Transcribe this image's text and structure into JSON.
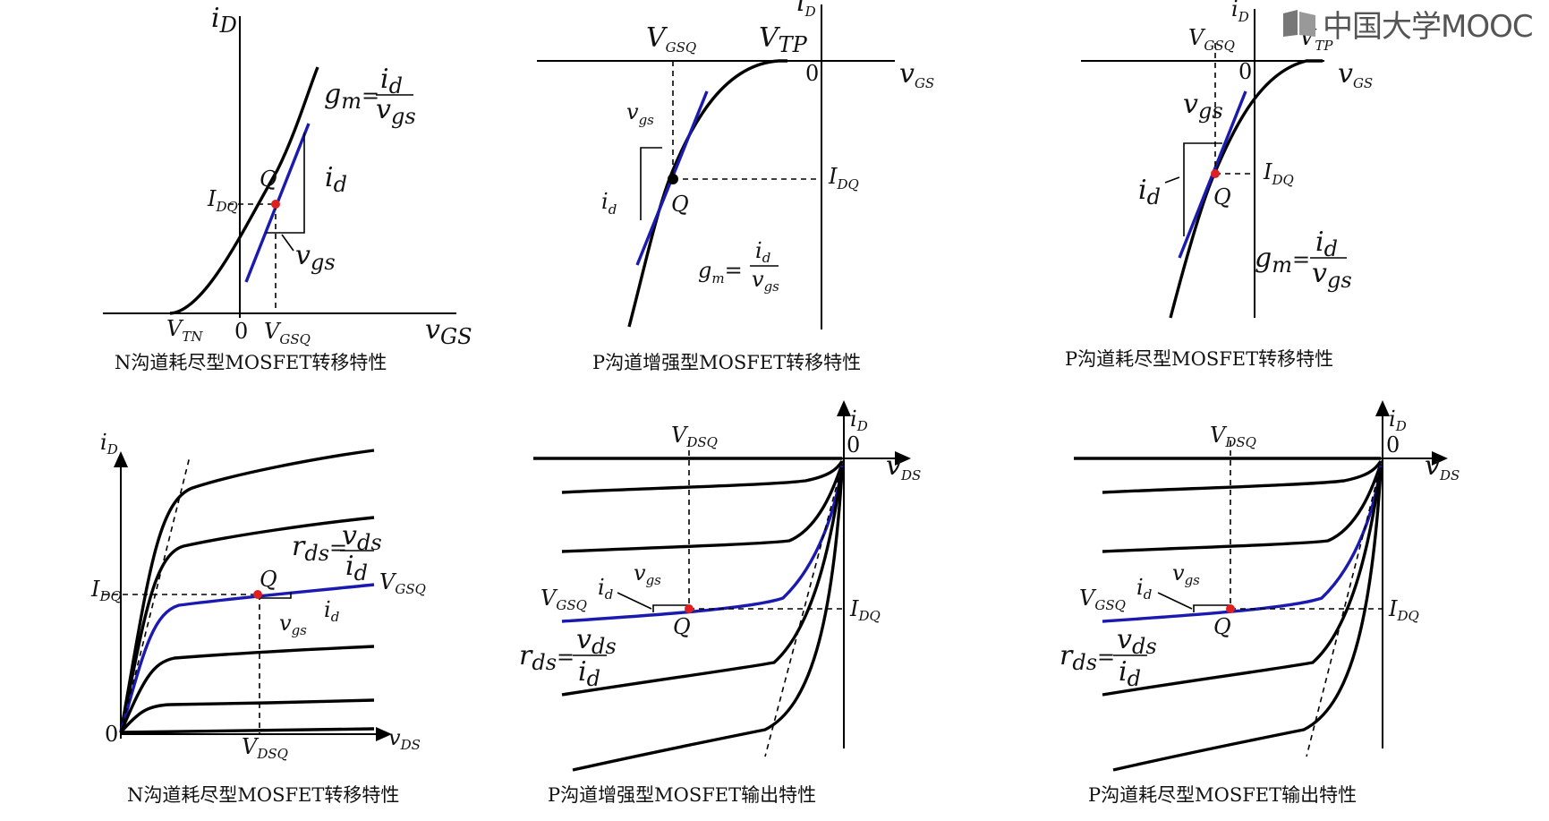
{
  "logo": {
    "text": "中国大学MOOC",
    "icon": "book-icon",
    "color": "#555555"
  },
  "colors": {
    "curve": "#000000",
    "tangent": "#1a1ab0",
    "q_point": "#e02020"
  },
  "panels": {
    "p1": {
      "caption": "N沟道耗尽型MOSFET转移特性",
      "gm_eq": "=",
      "vtn": "V",
      "vtn_sub": "TN",
      "zero": "0",
      "vgsq": "V",
      "vgsq_sub": "GSQ",
      "idq": "I",
      "idq_sub": "DQ",
      "axis_y": "i",
      "axis_y_sub": "D",
      "axis_x": "v",
      "axis_x_sub": "GS",
      "q": "Q",
      "gm": "g",
      "gm_sub": "m",
      "num": "i",
      "num_sub": "d",
      "den": "v",
      "den_sub": "gs",
      "id": "i",
      "id_sub": "d",
      "vgs": "v",
      "vgs_sub": "gs"
    },
    "p2": {
      "caption": "P沟道增强型MOSFET转移特性",
      "gm_eq": "=",
      "vgsq": "V",
      "vgsq_sub": "GSQ",
      "vtp": "V",
      "vtp_sub": "TP",
      "zero": "0",
      "axis_y": "i",
      "axis_y_sub": "D",
      "axis_x": "v",
      "axis_x_sub": "GS",
      "idq": "I",
      "idq_sub": "DQ",
      "q": "Q",
      "gm": "g",
      "gm_sub": "m",
      "num": "i",
      "num_sub": "d",
      "den": "v",
      "den_sub": "gs",
      "id": "i",
      "id_sub": "d",
      "vgs": "v",
      "vgs_sub": "gs"
    },
    "p3": {
      "caption": "P沟道耗尽型MOSFET转移特性",
      "gm_eq": "=",
      "vgsq": "V",
      "vgsq_sub": "GSQ",
      "vtp": "V",
      "vtp_sub": "TP",
      "zero": "0",
      "axis_y": "i",
      "axis_y_sub": "D",
      "axis_x": "v",
      "axis_x_sub": "GS",
      "idq": "I",
      "idq_sub": "DQ",
      "q": "Q",
      "gm": "g",
      "gm_sub": "m",
      "num": "i",
      "num_sub": "d",
      "den": "v",
      "den_sub": "gs",
      "id": "i",
      "id_sub": "d",
      "vgs": "v",
      "vgs_sub": "gs"
    },
    "p4": {
      "caption": "N沟道耗尽型MOSFET转移特性",
      "rd_eq": "=",
      "zero": "0",
      "axis_y": "i",
      "axis_y_sub": "D",
      "axis_x": "v",
      "axis_x_sub": "DS",
      "idq": "I",
      "idq_sub": "DQ",
      "vdsq": "V",
      "vdsq_sub": "DSQ",
      "vgsq": "V",
      "vgsq_sub": "GSQ",
      "q": "Q",
      "rd": "r",
      "rd_sub": "ds",
      "num": "v",
      "num_sub": "ds",
      "den": "i",
      "den_sub": "d",
      "id": "i",
      "id_sub": "d",
      "vgs": "v",
      "vgs_sub": "gs"
    },
    "p5": {
      "caption": "P沟道增强型MOSFET输出特性",
      "rd_eq": "=",
      "zero": "0",
      "axis_y": "i",
      "axis_y_sub": "D",
      "axis_x": "v",
      "axis_x_sub": "DS",
      "idq": "I",
      "idq_sub": "DQ",
      "vdsq": "V",
      "vdsq_sub": "DSQ",
      "vgsq": "V",
      "vgsq_sub": "GSQ",
      "q": "Q",
      "rd": "r",
      "rd_sub": "ds",
      "num": "v",
      "num_sub": "ds",
      "den": "i",
      "den_sub": "d",
      "id": "i",
      "id_sub": "d",
      "vgs": "v",
      "vgs_sub": "gs"
    },
    "p6": {
      "caption": "P沟道耗尽型MOSFET输出特性",
      "rd_eq": "=",
      "zero": "0",
      "axis_y": "i",
      "axis_y_sub": "D",
      "axis_x": "v",
      "axis_x_sub": "DS",
      "idq": "I",
      "idq_sub": "DQ",
      "vdsq": "V",
      "vdsq_sub": "DSQ",
      "vgsq": "V",
      "vgsq_sub": "GSQ",
      "q": "Q",
      "rd": "r",
      "rd_sub": "ds",
      "num": "v",
      "num_sub": "ds",
      "den": "i",
      "den_sub": "d",
      "id": "i",
      "id_sub": "d",
      "vgs": "v",
      "vgs_sub": "gs"
    }
  }
}
